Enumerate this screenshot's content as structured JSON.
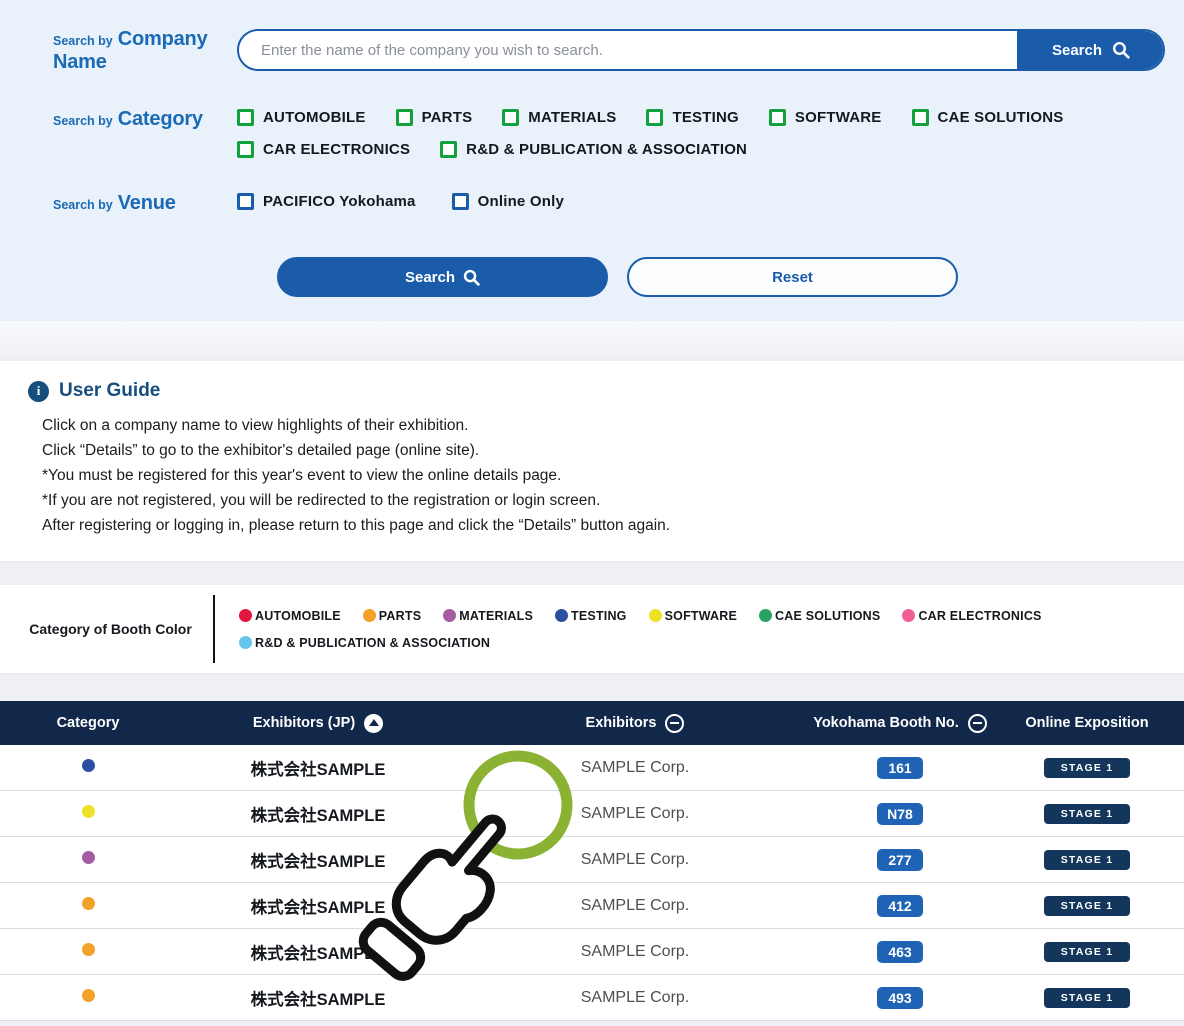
{
  "search": {
    "company": {
      "prefix": "Search by",
      "label": "Company Name",
      "placeholder": "Enter the name of the company you wish to search.",
      "button": "Search"
    },
    "category": {
      "prefix": "Search by",
      "label": "Category",
      "options_line1": [
        "AUTOMOBILE",
        "PARTS",
        "MATERIALS",
        "TESTING",
        "SOFTWARE",
        "CAE SOLUTIONS"
      ],
      "options_line2": [
        "CAR ELECTRONICS",
        "R&D & PUBLICATION & ASSOCIATION"
      ]
    },
    "venue": {
      "prefix": "Search by",
      "label": "Venue",
      "options": [
        "PACIFICO Yokohama",
        "Online Only"
      ]
    },
    "buttons": {
      "search": "Search",
      "reset": "Reset"
    }
  },
  "user_guide": {
    "title": "User Guide",
    "lines": [
      "Click on a company name to view highlights of their exhibition.",
      "Click “Details” to go to the exhibitor's detailed page (online site).",
      "*You must be registered for this year's event to view the online details page.",
      "*If you are not registered, you will be redirected to the registration or login screen.",
      "After registering or logging in, please return to this page and click the “Details” button again."
    ]
  },
  "booth_legend": {
    "title": "Category of Booth Color",
    "rows": [
      [
        {
          "label": "AUTOMOBILE",
          "color": "#e1173f"
        },
        {
          "label": "PARTS",
          "color": "#f2a229"
        },
        {
          "label": "MATERIALS",
          "color": "#a55ca3"
        },
        {
          "label": "TESTING",
          "color": "#2b50a1"
        },
        {
          "label": "SOFTWARE",
          "color": "#efe226"
        },
        {
          "label": "CAE SOLUTIONS",
          "color": "#2aa263"
        },
        {
          "label": "CAR ELECTRONICS",
          "color": "#ef5f95"
        }
      ],
      [
        {
          "label": "R&D & PUBLICATION & ASSOCIATION",
          "color": "#62c5ee"
        }
      ]
    ]
  },
  "table": {
    "headers": [
      {
        "label": "Category",
        "sort": null
      },
      {
        "label": "Exhibitors (JP)",
        "sort": "up"
      },
      {
        "label": "Exhibitors",
        "sort": "dash"
      },
      {
        "label": "Yokohama Booth No.",
        "sort": "dash"
      },
      {
        "label": "Online Exposition",
        "sort": null
      }
    ],
    "rows": [
      {
        "category_color": "#2b50a1",
        "exhibitor_jp": "株式会社SAMPLE",
        "exhibitor_en": "SAMPLE Corp.",
        "booth_no": "161",
        "online": "STAGE 1"
      },
      {
        "category_color": "#efe226",
        "exhibitor_jp": "株式会社SAMPLE",
        "exhibitor_en": "SAMPLE Corp.",
        "booth_no": "N78",
        "online": "STAGE 1"
      },
      {
        "category_color": "#a55ca3",
        "exhibitor_jp": "株式会社SAMPLE",
        "exhibitor_en": "SAMPLE Corp.",
        "booth_no": "277",
        "online": "STAGE 1"
      },
      {
        "category_color": "#f2a229",
        "exhibitor_jp": "株式会社SAMPLE",
        "exhibitor_en": "SAMPLE Corp.",
        "booth_no": "412",
        "online": "STAGE 1"
      },
      {
        "category_color": "#f2a229",
        "exhibitor_jp": "株式会社SAMPLE",
        "exhibitor_en": "SAMPLE Corp.",
        "booth_no": "463",
        "online": "STAGE 1"
      },
      {
        "category_color": "#f2a229",
        "exhibitor_jp": "株式会社SAMPLE",
        "exhibitor_en": "SAMPLE Corp.",
        "booth_no": "493",
        "online": "STAGE 1"
      }
    ]
  },
  "colors": {
    "accent_blue": "#1a5ca9",
    "label_blue": "#1a6ab5",
    "checkbox_green": "#12a13c",
    "guide_navy": "#174e7e",
    "table_header_navy": "#12284a",
    "booth_badge_blue": "#1e63b6",
    "stage_badge_navy": "#15365c",
    "gesture_circle_green": "#8cb233"
  }
}
